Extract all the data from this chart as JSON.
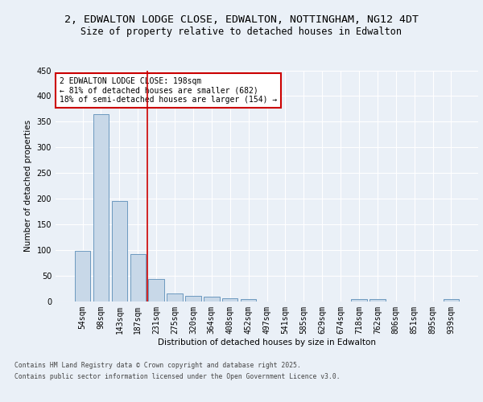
{
  "title_line1": "2, EDWALTON LODGE CLOSE, EDWALTON, NOTTINGHAM, NG12 4DT",
  "title_line2": "Size of property relative to detached houses in Edwalton",
  "xlabel": "Distribution of detached houses by size in Edwalton",
  "ylabel": "Number of detached properties",
  "categories": [
    "54sqm",
    "98sqm",
    "143sqm",
    "187sqm",
    "231sqm",
    "275sqm",
    "320sqm",
    "364sqm",
    "408sqm",
    "452sqm",
    "497sqm",
    "541sqm",
    "585sqm",
    "629sqm",
    "674sqm",
    "718sqm",
    "762sqm",
    "806sqm",
    "851sqm",
    "895sqm",
    "939sqm"
  ],
  "values": [
    99,
    365,
    195,
    93,
    44,
    15,
    11,
    9,
    6,
    5,
    0,
    0,
    0,
    0,
    0,
    5,
    4,
    0,
    0,
    0,
    4
  ],
  "bar_color": "#c8d8e8",
  "bar_edge_color": "#5b8db8",
  "vline_x": 3.5,
  "vline_color": "#cc0000",
  "annotation_text": "2 EDWALTON LODGE CLOSE: 198sqm\n← 81% of detached houses are smaller (682)\n18% of semi-detached houses are larger (154) →",
  "annotation_box_color": "white",
  "annotation_box_edge": "#cc0000",
  "ylim": [
    0,
    450
  ],
  "yticks": [
    0,
    50,
    100,
    150,
    200,
    250,
    300,
    350,
    400,
    450
  ],
  "footer_line1": "Contains HM Land Registry data © Crown copyright and database right 2025.",
  "footer_line2": "Contains public sector information licensed under the Open Government Licence v3.0.",
  "bg_color": "#eaf0f7",
  "plot_bg_color": "#eaf0f7",
  "grid_color": "white",
  "title_fontsize": 9.5,
  "subtitle_fontsize": 8.5,
  "annotation_fontsize": 7.0,
  "axis_label_fontsize": 7.5,
  "tick_fontsize": 7.0,
  "footer_fontsize": 5.8
}
